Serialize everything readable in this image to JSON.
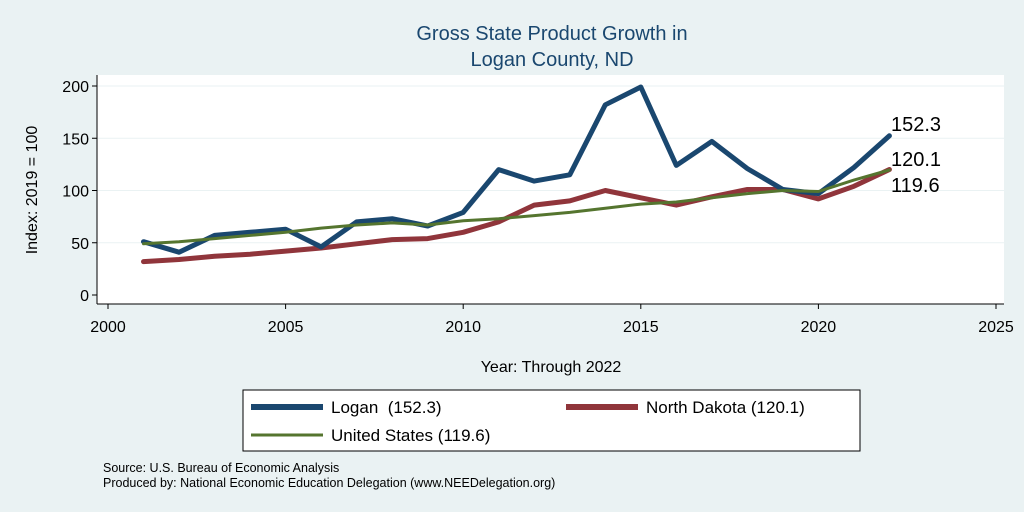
{
  "chart_data": {
    "type": "line",
    "title": [
      "Gross State Product Growth in",
      "Logan County, ND"
    ],
    "xlabel": "Year: Through 2022",
    "ylabel": "Index: 2019 = 100",
    "xlim": [
      2000,
      2025
    ],
    "ylim": [
      0,
      200
    ],
    "xticks": [
      2000,
      2005,
      2010,
      2015,
      2020,
      2025
    ],
    "yticks": [
      0,
      50,
      100,
      150,
      200
    ],
    "x": [
      2001,
      2002,
      2003,
      2004,
      2005,
      2006,
      2007,
      2008,
      2009,
      2010,
      2011,
      2012,
      2013,
      2014,
      2015,
      2016,
      2017,
      2018,
      2019,
      2020,
      2021,
      2022
    ],
    "series": [
      {
        "name": "Logan",
        "legend": "Logan  (152.3)",
        "end_label": "152.3",
        "color": "#1a476f",
        "values": [
          51,
          41,
          57,
          60,
          63,
          46,
          70,
          73,
          66,
          79,
          120,
          109,
          115,
          182,
          199,
          124,
          147,
          121,
          101,
          97,
          122,
          152.3
        ]
      },
      {
        "name": "North Dakota",
        "legend": "North Dakota (120.1)",
        "end_label": "120.1",
        "color": "#90353b",
        "values": [
          32,
          34,
          37,
          39,
          42,
          45,
          49,
          53,
          54,
          60,
          70,
          86,
          90,
          100,
          93,
          86,
          94,
          101,
          101,
          92,
          104,
          120.1
        ]
      },
      {
        "name": "United States",
        "legend": "United States (119.6)",
        "end_label": "119.6",
        "color": "#55752f",
        "values": [
          49,
          51,
          54,
          57,
          60,
          64,
          67,
          69,
          67,
          71,
          73,
          76,
          79,
          83,
          87,
          89,
          93,
          97,
          100,
          99,
          110,
          119.6
        ]
      }
    ]
  },
  "source_line": "Source: U.S. Bureau of Economic Analysis",
  "produced_line": "Produced by: National Economic Education Delegation (www.NEEDelegation.org)"
}
